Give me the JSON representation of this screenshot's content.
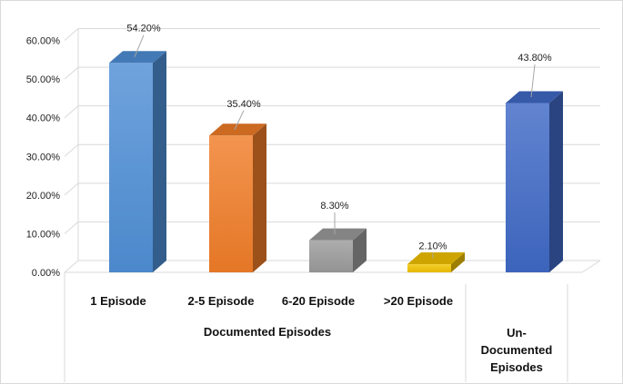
{
  "chart_data": {
    "type": "bar",
    "style": "3d-column",
    "categories": [
      "1 Episode",
      "2-5 Episode",
      "6-20 Episode",
      ">20 Episode",
      "Un-Documented Episodes"
    ],
    "values": [
      54.2,
      35.4,
      8.3,
      2.1,
      43.8
    ],
    "data_labels": [
      "54.20%",
      "35.40%",
      "8.30%",
      "2.10%",
      "43.80%"
    ],
    "colors": [
      "#4f8fd6",
      "#f07d28",
      "#9b9b9b",
      "#f2c200",
      "#3f69c6"
    ],
    "ylim": [
      0,
      60
    ],
    "y_ticks": [
      "0.00%",
      "10.00%",
      "20.00%",
      "30.00%",
      "40.00%",
      "50.00%",
      "60.00%"
    ],
    "grid": true,
    "legend": "none",
    "groups": [
      {
        "label": "Documented Episodes",
        "categories": [
          "1 Episode",
          "2-5 Episode",
          "6-20 Episode",
          ">20 Episode"
        ]
      },
      {
        "label": "",
        "categories": [
          "Un-Documented Episodes"
        ]
      }
    ],
    "category_lines": {
      "Un-Documented Episodes": [
        "Un-",
        "Documented",
        "Episodes"
      ]
    }
  }
}
